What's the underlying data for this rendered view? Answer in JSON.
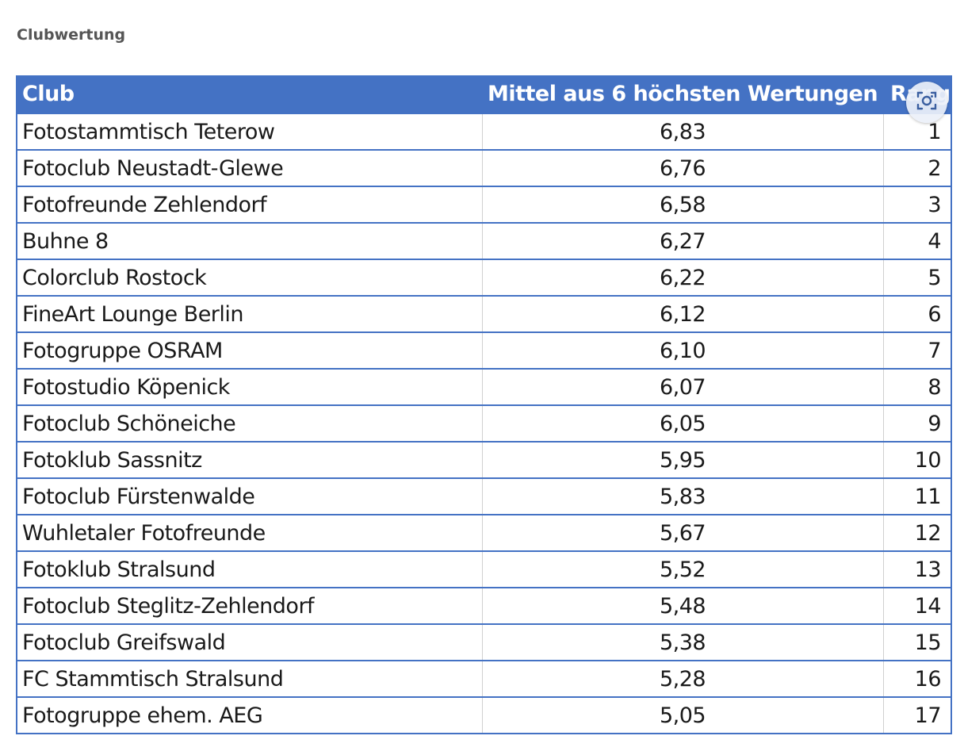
{
  "page": {
    "heading": "Clubwertung"
  },
  "table": {
    "headers": {
      "club": "Club",
      "mean": "Mittel aus 6 höchsten Wertungen",
      "rank": "Rang"
    },
    "rows": [
      {
        "club": "Fotostammtisch Teterow",
        "mean": "6,83",
        "rank": "1"
      },
      {
        "club": "Fotoclub Neustadt-Glewe",
        "mean": "6,76",
        "rank": "2"
      },
      {
        "club": "Fotofreunde Zehlendorf",
        "mean": "6,58",
        "rank": "3"
      },
      {
        "club": "Buhne 8",
        "mean": "6,27",
        "rank": "4"
      },
      {
        "club": "Colorclub Rostock",
        "mean": "6,22",
        "rank": "5"
      },
      {
        "club": "FineArt Lounge Berlin",
        "mean": "6,12",
        "rank": "6"
      },
      {
        "club": "Fotogruppe OSRAM",
        "mean": "6,10",
        "rank": "7"
      },
      {
        "club": "Fotostudio Köpenick",
        "mean": "6,07",
        "rank": "8"
      },
      {
        "club": "Fotoclub Schöneiche",
        "mean": "6,05",
        "rank": "9"
      },
      {
        "club": "Fotoklub Sassnitz",
        "mean": "5,95",
        "rank": "10"
      },
      {
        "club": "Fotoclub Fürstenwalde",
        "mean": "5,83",
        "rank": "11"
      },
      {
        "club": "Wuhletaler Fotofreunde",
        "mean": "5,67",
        "rank": "12"
      },
      {
        "club": "Fotoklub Stralsund",
        "mean": "5,52",
        "rank": "13"
      },
      {
        "club": "Fotoclub Steglitz-Zehlendorf",
        "mean": "5,48",
        "rank": "14"
      },
      {
        "club": "Fotoclub Greifswald",
        "mean": "5,38",
        "rank": "15"
      },
      {
        "club": "FC Stammtisch Stralsund",
        "mean": "5,28",
        "rank": "16"
      },
      {
        "club": "Fotogruppe ehem. AEG",
        "mean": "5,05",
        "rank": "17"
      }
    ]
  },
  "overlay": {
    "icon": "visual-search-icon"
  },
  "colors": {
    "header_bg": "#4472c4",
    "header_text": "#ffffff",
    "grid_line": "#4472c4"
  }
}
